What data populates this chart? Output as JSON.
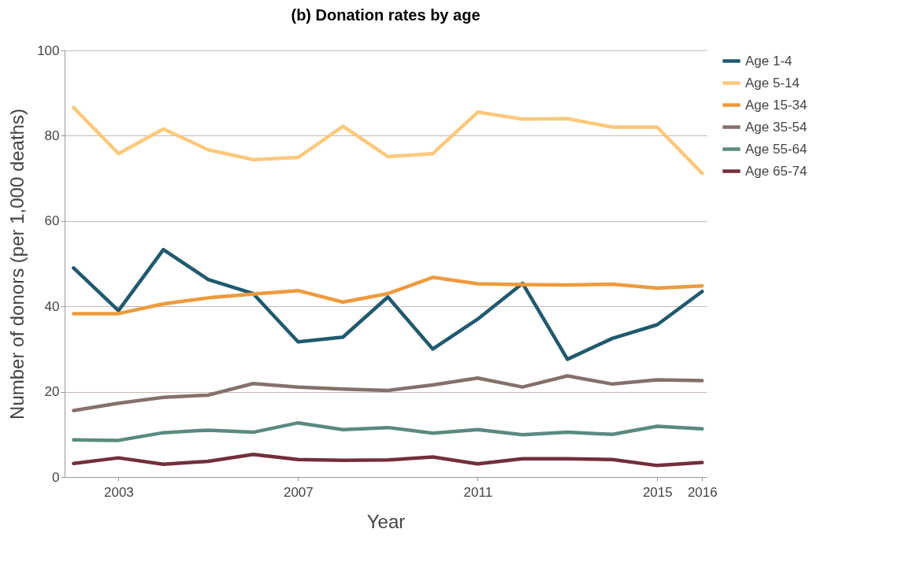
{
  "chart_data": {
    "type": "line",
    "title": "(b) Donation rates by age",
    "xlabel": "Year",
    "ylabel": "Number of donors (per 1,000 deaths)",
    "x": [
      2002,
      2003,
      2004,
      2005,
      2006,
      2007,
      2008,
      2009,
      2010,
      2011,
      2012,
      2013,
      2014,
      2015,
      2016
    ],
    "series": [
      {
        "name": "Age 1-4",
        "color": "#1f5a6e",
        "values": [
          49,
          39,
          53.3,
          46.3,
          43,
          31.7,
          32.8,
          42.2,
          30,
          37,
          45.4,
          27.6,
          32.5,
          35.7,
          43.5
        ]
      },
      {
        "name": "Age 5-14",
        "color": "#fcc97a",
        "values": [
          86.6,
          75.8,
          81.6,
          76.7,
          74.4,
          74.9,
          82.2,
          75.1,
          75.8,
          85.5,
          83.9,
          84,
          82,
          82,
          71.2
        ]
      },
      {
        "name": "Age 15-34",
        "color": "#ee9a3c",
        "values": [
          38.3,
          38.3,
          40.6,
          42,
          42.9,
          43.7,
          41,
          43,
          46.8,
          45.3,
          45.1,
          45,
          45.2,
          44.3,
          44.8
        ]
      },
      {
        "name": "Age 35-54",
        "color": "#85716a",
        "values": [
          15.6,
          17.3,
          18.7,
          19.2,
          21.9,
          21.1,
          20.6,
          20.3,
          21.6,
          23.2,
          21.1,
          23.7,
          21.8,
          22.8,
          22.6
        ]
      },
      {
        "name": "Age 55-64",
        "color": "#5a8a80",
        "values": [
          8.7,
          8.6,
          10.4,
          11,
          10.5,
          12.7,
          11.1,
          11.6,
          10.3,
          11.1,
          9.9,
          10.5,
          10,
          11.9,
          11.3
        ]
      },
      {
        "name": "Age 65-74",
        "color": "#722f3a",
        "values": [
          3.2,
          4.5,
          3,
          3.7,
          5.3,
          4.1,
          3.9,
          4,
          4.7,
          3.1,
          4.3,
          4.3,
          4.1,
          2.7,
          3.4
        ]
      }
    ],
    "xlim": [
      2001.8,
      2016.1
    ],
    "xticks": [
      2003,
      2007,
      2011,
      2015,
      2016
    ],
    "ylim": [
      0,
      100
    ],
    "yticks": [
      0,
      20,
      40,
      60,
      80,
      100
    ],
    "grid": "y",
    "legend": "right",
    "marker": "none",
    "line_style": "solid"
  }
}
